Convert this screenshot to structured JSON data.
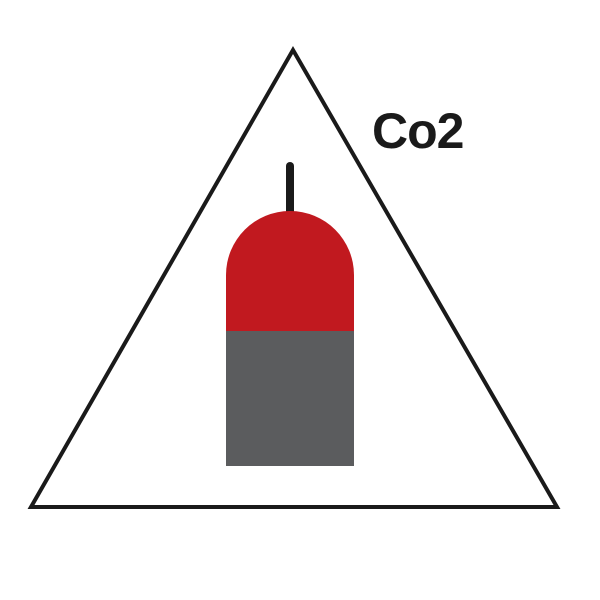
{
  "sign": {
    "label": "Co2",
    "colors": {
      "background": "#ffffff",
      "outline": "#1a1a1a",
      "cylinder_top": "#c1191f",
      "cylinder_body": "#5b5c5e",
      "valve": "#1a1a1a",
      "label": "#1a1a1a"
    }
  }
}
